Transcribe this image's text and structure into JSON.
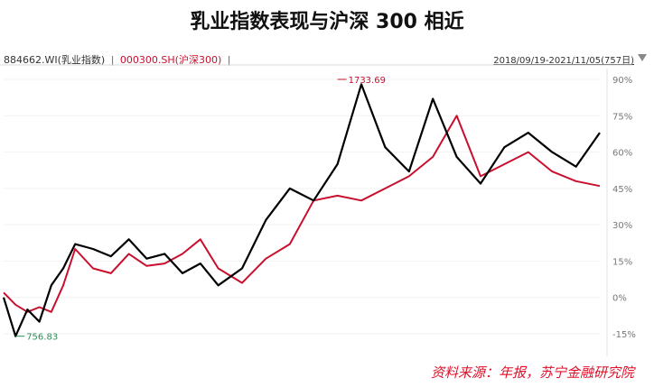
{
  "title": "乳业指数表现与沪深 300 相近",
  "legend": {
    "series1": "884662.WI(乳业指数)",
    "separator": "|",
    "series2": "000300.SH(沪深300)",
    "trailing": "|"
  },
  "date_range": "2018/09/19-2021/11/05(757日)",
  "source": "资料来源：年报，苏宁金融研究院",
  "colors": {
    "series1": "#000000",
    "series2": "#c8102e",
    "min_label": "#2e8b57",
    "max_label": "#c8102e",
    "source": "#e0102a"
  },
  "chart_data": {
    "type": "line",
    "ylim": [
      -15,
      90
    ],
    "yticks": [
      -15,
      0,
      15,
      30,
      45,
      60,
      75,
      90
    ],
    "ytick_labels": [
      "-15%",
      "0%",
      "15%",
      "30%",
      "45%",
      "60%",
      "75%",
      "90%"
    ],
    "x": [
      0,
      2,
      4,
      6,
      8,
      10,
      12,
      15,
      18,
      21,
      24,
      27,
      30,
      33,
      36,
      40,
      44,
      48,
      52,
      56,
      60,
      64,
      68,
      72,
      76,
      80,
      84,
      88,
      92,
      96,
      100
    ],
    "annotations": [
      {
        "label": "1733.69",
        "series": "884662.WI(乳业指数)",
        "x": 56,
        "y": 90
      },
      {
        "label": "756.83",
        "series": "884662.WI(乳业指数)",
        "x": 2,
        "y": -16
      }
    ],
    "series": [
      {
        "name": "884662.WI(乳业指数)",
        "values": [
          0,
          -16,
          -5,
          -10,
          5,
          12,
          22,
          20,
          17,
          24,
          16,
          18,
          10,
          14,
          5,
          12,
          32,
          45,
          40,
          55,
          88,
          62,
          52,
          82,
          58,
          47,
          62,
          68,
          60,
          54,
          68
        ]
      },
      {
        "name": "000300.SH(沪深300)",
        "values": [
          2,
          -3,
          -6,
          -4,
          -6,
          5,
          20,
          12,
          10,
          18,
          13,
          14,
          18,
          24,
          12,
          6,
          16,
          22,
          40,
          42,
          40,
          45,
          50,
          58,
          75,
          50,
          55,
          60,
          52,
          48,
          46
        ]
      }
    ]
  }
}
